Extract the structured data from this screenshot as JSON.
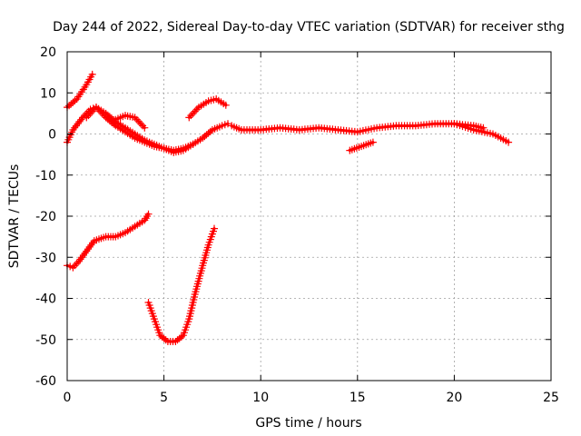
{
  "chart_data": {
    "type": "line",
    "title": "Day 244 of 2022, Sidereal Day-to-day VTEC variation (SDTVAR) for receiver sthg",
    "xlabel": "GPS time / hours",
    "ylabel": "SDTVAR / TECUs",
    "xlim": [
      0,
      25
    ],
    "ylim": [
      -60,
      20
    ],
    "xticks": [
      0,
      5,
      10,
      15,
      20,
      25
    ],
    "yticks": [
      -60,
      -50,
      -40,
      -30,
      -20,
      -10,
      0,
      10,
      20
    ],
    "grid": true,
    "color": "#ff0000",
    "marker": "plus",
    "series": [
      {
        "name": "s1",
        "x": [
          0.0,
          0.5,
          1.0,
          1.3
        ],
        "y": [
          6.5,
          8.5,
          12.0,
          14.5
        ]
      },
      {
        "name": "s2",
        "x": [
          0.0,
          0.3,
          0.8,
          1.2,
          1.5,
          2.0,
          2.5,
          3.0,
          3.5,
          4.0,
          4.5,
          5.0,
          5.5,
          6.0,
          6.5,
          7.0,
          7.5,
          8.0,
          8.3
        ],
        "y": [
          -2.0,
          1.0,
          4.0,
          6.0,
          6.5,
          4.0,
          2.0,
          0.5,
          -1.0,
          -2.0,
          -3.0,
          -3.5,
          -4.0,
          -3.5,
          -2.5,
          -1.0,
          1.0,
          2.0,
          2.5
        ]
      },
      {
        "name": "s3",
        "x": [
          1.0,
          1.5,
          2.0,
          2.5,
          3.0,
          3.5,
          4.0,
          4.5,
          5.0,
          5.5,
          6.0,
          6.5
        ],
        "y": [
          4.0,
          6.5,
          5.0,
          3.0,
          1.5,
          0.0,
          -1.5,
          -2.5,
          -3.5,
          -4.5,
          -4.0,
          -2.5
        ]
      },
      {
        "name": "s4",
        "x": [
          2.5,
          3.0,
          3.5,
          4.0
        ],
        "y": [
          3.5,
          4.5,
          4.0,
          1.5
        ]
      },
      {
        "name": "s5",
        "x": [
          6.3,
          6.8,
          7.3,
          7.7,
          8.2
        ],
        "y": [
          4.0,
          6.5,
          8.0,
          8.5,
          7.0
        ]
      },
      {
        "name": "s6",
        "x": [
          8.5,
          9.0,
          10.0,
          11.0,
          12.0,
          13.0,
          14.0,
          15.0,
          16.0,
          17.0,
          18.0,
          19.0,
          20.0,
          21.0,
          22.0,
          22.8
        ],
        "y": [
          2.0,
          1.0,
          1.0,
          1.5,
          1.0,
          1.5,
          1.0,
          0.5,
          1.5,
          2.0,
          2.0,
          2.5,
          2.5,
          1.0,
          0.0,
          -2.0
        ]
      },
      {
        "name": "s7",
        "x": [
          20.0,
          21.0,
          21.5
        ],
        "y": [
          2.5,
          2.0,
          1.5
        ]
      },
      {
        "name": "s8",
        "x": [
          14.6,
          15.2,
          15.8
        ],
        "y": [
          -4.0,
          -3.0,
          -2.0
        ]
      },
      {
        "name": "s9",
        "x": [
          0.0,
          0.3,
          0.6,
          1.0,
          1.4,
          2.0,
          2.5,
          3.0,
          3.5,
          4.0,
          4.2
        ],
        "y": [
          -32.0,
          -32.5,
          -31.0,
          -28.5,
          -26.0,
          -25.0,
          -25.0,
          -24.0,
          -22.5,
          -21.0,
          -19.5
        ]
      },
      {
        "name": "s10",
        "x": [
          4.2,
          4.5,
          4.8,
          5.2,
          5.6,
          6.0,
          6.3,
          6.6,
          7.0,
          7.3,
          7.6
        ],
        "y": [
          -41.0,
          -45.0,
          -49.0,
          -50.5,
          -50.5,
          -49.0,
          -45.0,
          -39.0,
          -32.0,
          -27.0,
          -23.0
        ]
      }
    ]
  }
}
